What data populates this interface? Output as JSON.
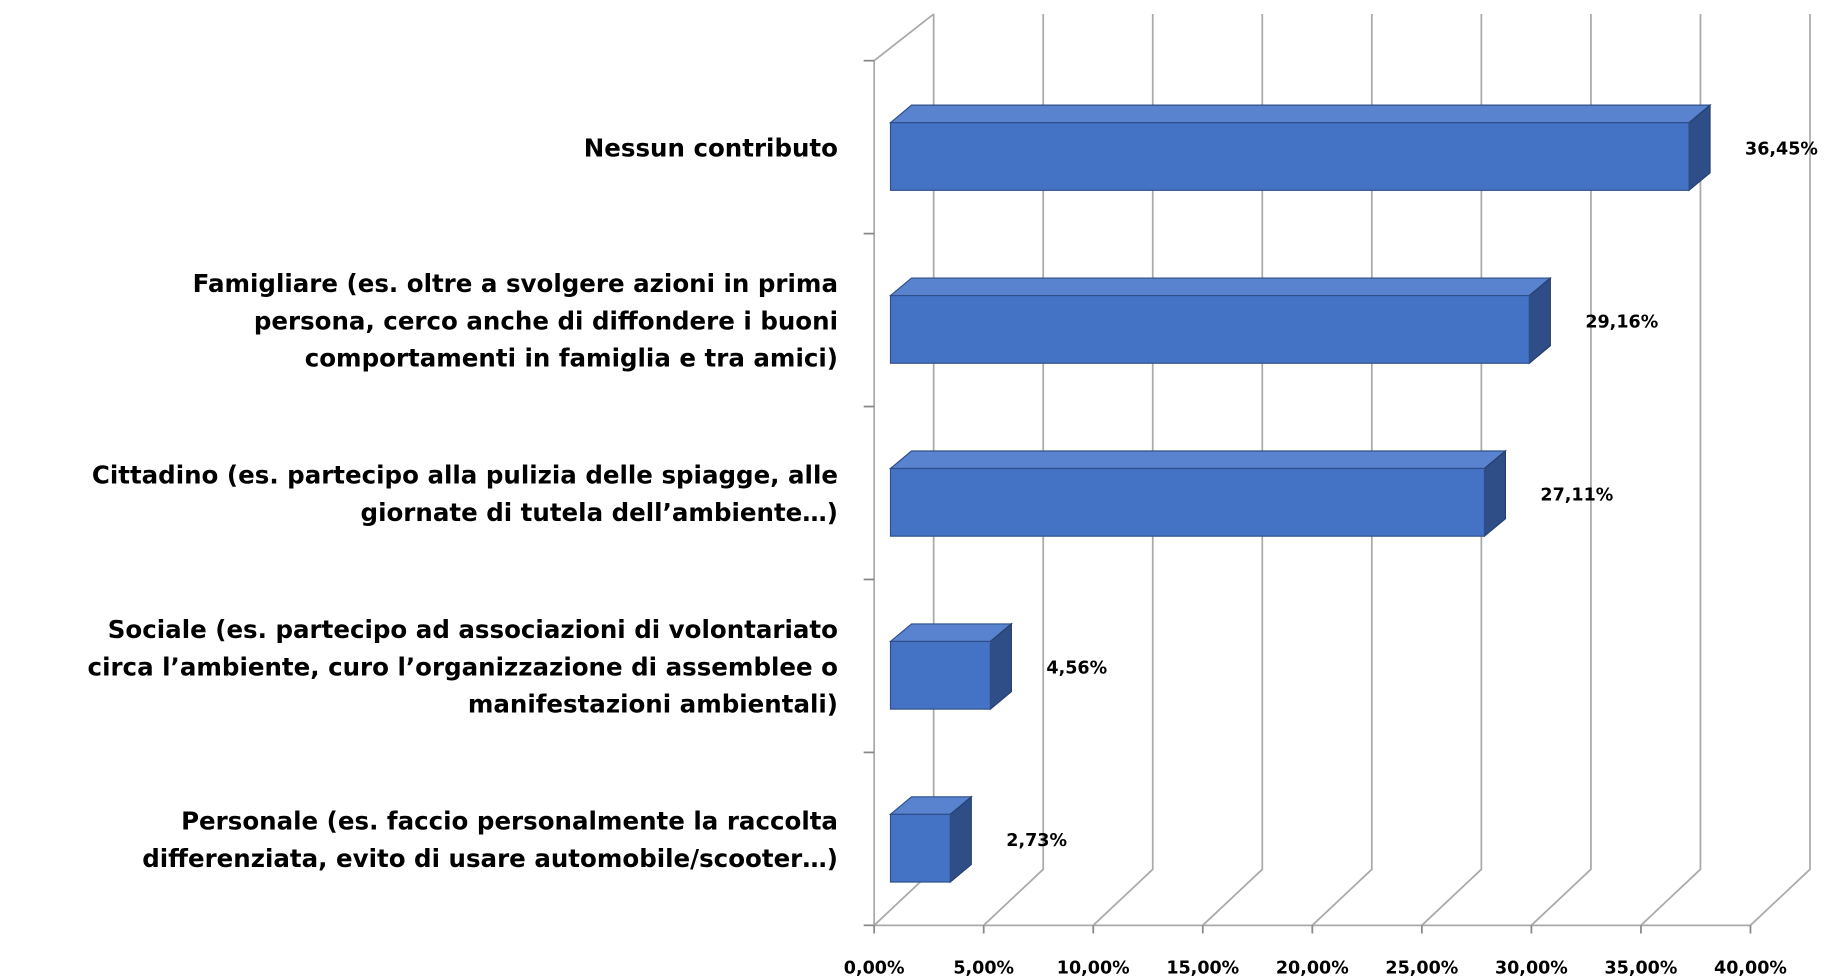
{
  "chart_data": {
    "type": "bar3d_horizontal",
    "categories": [
      [
        "Nessun contributo"
      ],
      [
        "Famigliare (es. oltre a svolgere azioni in prima",
        "persona, cerco anche di diffondere i buoni",
        "comportamenti in famiglia e tra amici)"
      ],
      [
        "Cittadino (es. partecipo alla pulizia delle spiagge, alle",
        "giornate di tutela dell’ambiente…)"
      ],
      [
        "Sociale (es. partecipo ad associazioni di volontariato",
        "circa l’ambiente, curo l’organizzazione di assemblee o",
        "manifestazioni ambientali)"
      ],
      [
        "Personale (es. faccio personalmente la raccolta",
        "differenziata, evito di usare automobile/scooter…)"
      ]
    ],
    "values": [
      36.45,
      29.16,
      27.11,
      4.56,
      2.73
    ],
    "value_labels": [
      "36,45%",
      "29,16%",
      "27,11%",
      "4,56%",
      "2,73%"
    ],
    "color": "#4472c4",
    "xlim": [
      0,
      40
    ],
    "xticks": [
      {
        "value": 0,
        "label": "0,00%"
      },
      {
        "value": 5,
        "label": "5,00%"
      },
      {
        "value": 10,
        "label": "10,00%"
      },
      {
        "value": 15,
        "label": "15,00%"
      },
      {
        "value": 20,
        "label": "20,00%"
      },
      {
        "value": 25,
        "label": "25,00%"
      },
      {
        "value": 30,
        "label": "30,00%"
      },
      {
        "value": 35,
        "label": "35,00%"
      },
      {
        "value": 40,
        "label": "40,00%"
      }
    ],
    "grid": true
  }
}
